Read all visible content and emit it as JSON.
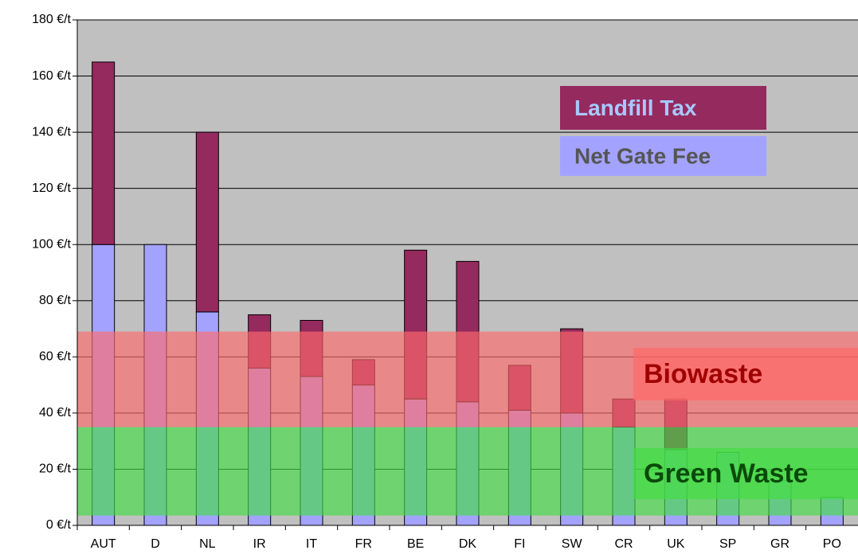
{
  "chart_data": {
    "type": "stacked_bar",
    "categories": [
      "AUT",
      "D",
      "NL",
      "IR",
      "IT",
      "FR",
      "BE",
      "DK",
      "FI",
      "SW",
      "CR",
      "UK",
      "SP",
      "GR",
      "PO"
    ],
    "series": [
      {
        "name": "Net Gate Fee",
        "color": "#a3a3ff",
        "values": [
          100,
          100,
          76,
          56,
          53,
          50,
          45,
          44,
          41,
          40,
          35,
          27,
          26,
          16,
          10
        ]
      },
      {
        "name": "Landfill Tax",
        "color": "#952a5e",
        "values": [
          65,
          0,
          64,
          19,
          20,
          9,
          53,
          50,
          16,
          30,
          10,
          18,
          0,
          0,
          0
        ]
      }
    ],
    "bands": [
      {
        "name": "Biowaste",
        "from": 35,
        "to": 69,
        "color": "#ff6a6a"
      },
      {
        "name": "Green Waste",
        "from": 3.5,
        "to": 35,
        "color": "#44dd44"
      }
    ],
    "ylim": [
      0,
      180
    ],
    "yticks": [
      {
        "value": 0,
        "label": "0 €/t"
      },
      {
        "value": 20,
        "label": "20 €/t"
      },
      {
        "value": 40,
        "label": "40 €/t"
      },
      {
        "value": 60,
        "label": "60 €/t"
      },
      {
        "value": 80,
        "label": "80 €/t"
      },
      {
        "value": 100,
        "label": "100 €/t"
      },
      {
        "value": 120,
        "label": "120 €/t"
      },
      {
        "value": 140,
        "label": "140 €/t"
      },
      {
        "value": 160,
        "label": "160 €/t"
      },
      {
        "value": 180,
        "label": "180 €/t"
      }
    ],
    "grid": true,
    "legend": "upper right"
  }
}
